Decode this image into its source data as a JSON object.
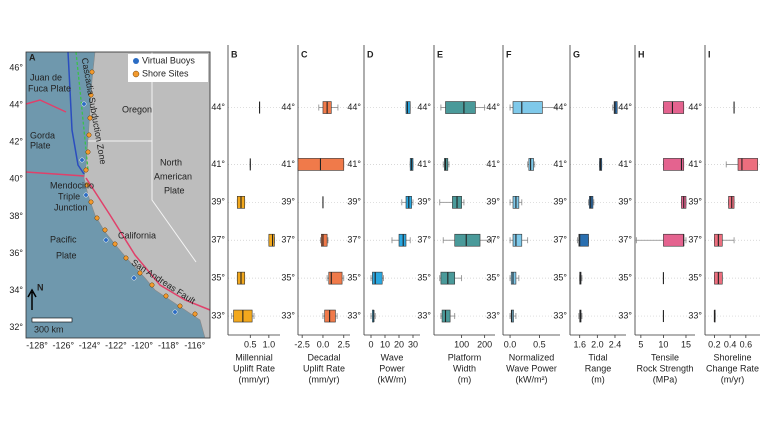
{
  "map": {
    "label": "A",
    "texts": [
      "Juan de",
      "Fuca Plate",
      "Gorda",
      "Plate",
      "Cascadia Subduction Zone",
      "Oregon",
      "North",
      "American",
      "Plate",
      "Mendocino",
      "Triple",
      "Junction",
      "Pacific",
      "Plate",
      "California",
      "San Andreas Fault",
      "N",
      "300 km"
    ],
    "legend": [
      "Virtual Buoys",
      "Shore Sites"
    ],
    "lat_ticks": [
      "46°",
      "44°",
      "42°",
      "40°",
      "38°",
      "36°",
      "34°",
      "32°"
    ],
    "lon_ticks": [
      "-128°",
      "-126°",
      "-124°",
      "-122°",
      "-120°",
      "-118°",
      "-116°"
    ]
  },
  "chart_data": [
    {
      "type": "box",
      "label": "B",
      "xlabel": [
        "Millennial",
        "Uplift Rate",
        "(mm/yr)"
      ],
      "color": "#f2a81d",
      "xlim": [
        -0.1,
        1.3
      ],
      "xticks": [
        0.5,
        {
          "value": 1,
          "label": "1.0"
        }
      ],
      "ylim": [
        32,
        47.3
      ],
      "grid": true,
      "yticks": [
        {
          "value": 44,
          "label": "44°"
        },
        {
          "value": 41,
          "label": "41°"
        },
        {
          "value": 39,
          "label": "39°"
        },
        {
          "value": 37,
          "label": "37°"
        },
        {
          "value": 35,
          "label": "35°"
        },
        {
          "value": 33,
          "label": "33°"
        }
      ],
      "values": [
        [
          0.75,
          0.75,
          0.75,
          0.75,
          0.75
        ],
        [
          0.5,
          0.5,
          0.5,
          0.5,
          0.5
        ],
        [
          0.15,
          0.15,
          0.25,
          0.35,
          0.35
        ],
        [
          1.0,
          1.0,
          1.1,
          1.15,
          1.15
        ],
        [
          0.15,
          0.15,
          0.25,
          0.35,
          0.35
        ],
        [
          0,
          0.05,
          0.3,
          0.55,
          0.6
        ]
      ]
    },
    {
      "type": "box",
      "label": "C",
      "xlabel": [
        "Decadal",
        "Uplift Rate",
        "(mm/yr)"
      ],
      "color": "#f07a4a",
      "xlim": [
        -3,
        3.25
      ],
      "xticks": [
        -2.5,
        {
          "value": 0,
          "label": "0.0"
        },
        2.5
      ],
      "ylim": [
        32,
        47.3
      ],
      "grid": true,
      "yticks": [
        {
          "value": 44,
          "label": "44°"
        },
        {
          "value": 41,
          "label": "41°"
        },
        {
          "value": 39,
          "label": "39°"
        },
        {
          "value": 37,
          "label": "37°"
        },
        {
          "value": 35,
          "label": "35°"
        },
        {
          "value": 33,
          "label": "33°"
        }
      ],
      "values": [
        [
          -0.5,
          0,
          0.5,
          1,
          1.8
        ],
        [
          -3,
          -3,
          -0.3,
          2.5,
          2.5
        ],
        [
          0,
          0,
          0,
          0,
          0
        ],
        [
          -0.3,
          -0.2,
          0,
          0.5,
          0.6
        ],
        [
          0.5,
          0.7,
          1,
          2.3,
          2.5
        ],
        [
          0,
          0.2,
          0.8,
          1.5,
          1.7
        ]
      ]
    },
    {
      "type": "box",
      "label": "D",
      "xlabel": [
        "Wave",
        "Power",
        "(kW/m)"
      ],
      "color": "#2aa7e0",
      "xlim": [
        -5,
        35
      ],
      "xticks": [
        0,
        10,
        20,
        30
      ],
      "ylim": [
        32,
        47.3
      ],
      "grid": true,
      "yticks": [
        {
          "value": 44,
          "label": "44°"
        },
        {
          "value": 41,
          "label": "41°"
        },
        {
          "value": 39,
          "label": "39°"
        },
        {
          "value": 37,
          "label": "37°"
        },
        {
          "value": 35,
          "label": "35°"
        },
        {
          "value": 33,
          "label": "33°"
        }
      ],
      "values": [
        [
          25,
          25,
          26,
          28,
          28
        ],
        [
          28,
          28,
          29,
          30,
          30
        ],
        [
          22,
          25,
          27,
          29,
          30
        ],
        [
          15,
          20,
          23,
          25,
          28
        ],
        [
          0,
          1,
          3,
          8,
          9
        ],
        [
          0,
          1,
          2,
          2,
          3
        ]
      ]
    },
    {
      "type": "box",
      "label": "E",
      "xlabel": [
        "Platform",
        "Width",
        "(m)"
      ],
      "color": "#4a9a9a",
      "xlim": [
        -20,
        245
      ],
      "xticks": [
        100,
        200
      ],
      "ylim": [
        32,
        47.3
      ],
      "grid": true,
      "yticks": [
        {
          "value": 44,
          "label": "44°"
        },
        {
          "value": 41,
          "label": "41°"
        },
        {
          "value": 39,
          "label": "39°"
        },
        {
          "value": 37,
          "label": "37°"
        },
        {
          "value": 35,
          "label": "35°"
        },
        {
          "value": 33,
          "label": "33°"
        }
      ],
      "values": [
        [
          10,
          30,
          110,
          160,
          200
        ],
        [
          20,
          25,
          30,
          40,
          45
        ],
        [
          5,
          60,
          80,
          100,
          110
        ],
        [
          20,
          70,
          120,
          180,
          230
        ],
        [
          5,
          10,
          40,
          70,
          100
        ],
        [
          10,
          15,
          30,
          50,
          70
        ]
      ]
    },
    {
      "type": "box",
      "label": "F",
      "xlabel": [
        "Normalized",
        "Wave Power",
        "(kW/m²)"
      ],
      "color": "#7fc9ea",
      "xlim": [
        -0.12,
        0.85
      ],
      "xticks": [
        {
          "value": 0,
          "label": "0.0"
        },
        0.5
      ],
      "ylim": [
        32,
        47.3
      ],
      "grid": true,
      "yticks": [
        {
          "value": 44,
          "label": "44°"
        },
        {
          "value": 41,
          "label": "41°"
        },
        {
          "value": 39,
          "label": "39°"
        },
        {
          "value": 37,
          "label": "37°"
        },
        {
          "value": 35,
          "label": "35°"
        },
        {
          "value": 33,
          "label": "33°"
        }
      ],
      "values": [
        [
          0,
          0.05,
          0.2,
          0.55,
          0.8
        ],
        [
          0.3,
          0.32,
          0.35,
          0.4,
          0.42
        ],
        [
          0,
          0.05,
          0.1,
          0.15,
          0.2
        ],
        [
          0,
          0.05,
          0.1,
          0.2,
          0.3
        ],
        [
          0,
          0.02,
          0.05,
          0.1,
          0.15
        ],
        [
          0,
          0.02,
          0.03,
          0.06,
          0.1
        ]
      ]
    },
    {
      "type": "box",
      "label": "G",
      "xlabel": [
        "Tidal",
        "Range",
        "(m)"
      ],
      "color": "#2a6fb0",
      "xlim": [
        1.38,
        2.65
      ],
      "xticks": [
        1.6,
        {
          "value": 2,
          "label": "2.0"
        },
        2.4
      ],
      "ylim": [
        32,
        47.3
      ],
      "grid": true,
      "yticks": [
        {
          "value": 44,
          "label": "44°"
        },
        {
          "value": 41,
          "label": "41°"
        },
        {
          "value": 39,
          "label": "39°"
        },
        {
          "value": 37,
          "label": "37°"
        },
        {
          "value": 35,
          "label": "35°"
        },
        {
          "value": 33,
          "label": "33°"
        }
      ],
      "values": [
        [
          2.35,
          2.38,
          2.4,
          2.45,
          2.45
        ],
        [
          2.05,
          2.05,
          2.07,
          2.1,
          2.1
        ],
        [
          1.8,
          1.82,
          1.85,
          1.9,
          1.92
        ],
        [
          1.55,
          1.58,
          1.6,
          1.8,
          1.8
        ],
        [
          1.6,
          1.6,
          1.62,
          1.63,
          1.65
        ],
        [
          1.58,
          1.6,
          1.62,
          1.63,
          1.65
        ]
      ]
    },
    {
      "type": "box",
      "label": "H",
      "xlabel": [
        "Tensile",
        "Rock Strength",
        "(MPa)"
      ],
      "color": "#e4638f",
      "xlim": [
        3.7,
        17
      ],
      "xticks": [
        5,
        10,
        15
      ],
      "ylim": [
        32,
        47.3
      ],
      "grid": true,
      "yticks": [
        {
          "value": 44,
          "label": "44°"
        },
        {
          "value": 41,
          "label": "41°"
        },
        {
          "value": 39,
          "label": "39°"
        },
        {
          "value": 37,
          "label": "37°"
        },
        {
          "value": 35,
          "label": "35°"
        },
        {
          "value": 33,
          "label": "33°"
        }
      ],
      "values": [
        [
          10,
          10,
          12,
          14.5,
          14.5
        ],
        [
          10,
          10,
          14,
          14.5,
          14.5
        ],
        [
          14,
          14,
          14.5,
          15,
          15
        ],
        [
          4,
          10,
          14.5,
          14.5,
          15
        ],
        [
          10,
          10,
          10,
          10,
          10
        ],
        [
          10,
          10,
          10,
          10,
          10
        ]
      ]
    },
    {
      "type": "box",
      "label": "I",
      "xlabel": [
        "Shoreline",
        "Change Rate",
        "(m/yr)"
      ],
      "color": "#ec6e7e",
      "xlim": [
        0.08,
        0.78
      ],
      "xticks": [
        0.2,
        0.4,
        0.6
      ],
      "ylim": [
        32,
        47.3
      ],
      "grid": true,
      "yticks": [
        {
          "value": 44,
          "label": "44°"
        },
        {
          "value": 41,
          "label": "41°"
        },
        {
          "value": 39,
          "label": "39°"
        },
        {
          "value": 37,
          "label": "37°"
        },
        {
          "value": 35,
          "label": "35°"
        },
        {
          "value": 33,
          "label": "33°"
        }
      ],
      "values": [
        [
          0.45,
          0.45,
          0.45,
          0.45,
          0.45
        ],
        [
          0.35,
          0.5,
          0.55,
          0.75,
          0.75
        ],
        [
          0.38,
          0.38,
          0.42,
          0.45,
          0.45
        ],
        [
          0.2,
          0.2,
          0.25,
          0.3,
          0.45
        ],
        [
          0.2,
          0.2,
          0.25,
          0.3,
          0.3
        ],
        [
          0.2,
          0.2,
          0.2,
          0.21,
          0.21
        ]
      ]
    }
  ]
}
